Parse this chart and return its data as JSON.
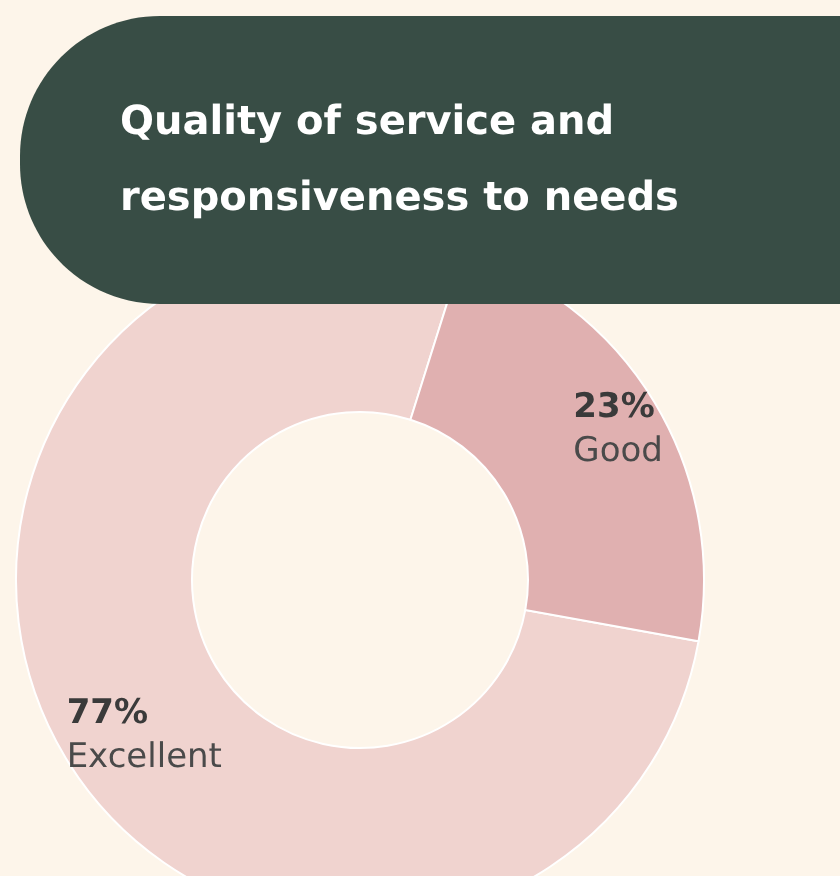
{
  "chart_data": {
    "type": "donut",
    "title": "Quality of service and responsiveness to needs",
    "categories": [
      "Excellent",
      "Good"
    ],
    "values": [
      77,
      23
    ],
    "colors": [
      "#f0d3cf",
      "#e0b0b0"
    ],
    "value_labels": [
      "77%",
      "23%"
    ]
  }
}
